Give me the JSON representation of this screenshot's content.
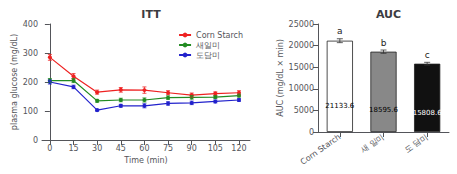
{
  "chart_data": [
    {
      "type": "line",
      "title": "ITT",
      "x": [
        0,
        15,
        30,
        45,
        60,
        75,
        90,
        105,
        120
      ],
      "xlim": [
        -5,
        127
      ],
      "xticks": [
        0,
        15,
        30,
        45,
        60,
        75,
        90,
        105,
        120
      ],
      "ylim": [
        0,
        400
      ],
      "yticks": [
        0,
        100,
        200,
        300,
        400
      ],
      "xlabel": "Time (min)",
      "ylabel": "plasma glucose (mg/dL)",
      "grid": false,
      "legend": "upper right",
      "marker": "circle",
      "series": [
        {
          "name": "Corn Starch",
          "color": "#EE2222",
          "values": [
            285,
            220,
            165,
            173,
            172,
            163,
            155,
            160,
            163
          ],
          "errors": [
            10,
            9,
            7,
            8,
            11,
            7,
            7,
            6,
            7
          ]
        },
        {
          "name": "새일미",
          "color": "#228B22",
          "values": [
            205,
            205,
            135,
            138,
            138,
            146,
            147,
            148,
            153
          ],
          "errors": [
            7,
            7,
            5,
            6,
            7,
            6,
            6,
            5,
            5
          ]
        },
        {
          "name": "도담미",
          "color": "#2222CC",
          "values": [
            200,
            183,
            103,
            118,
            118,
            126,
            128,
            133,
            138
          ],
          "errors": [
            7,
            6,
            4,
            5,
            7,
            6,
            6,
            5,
            5
          ]
        }
      ]
    },
    {
      "type": "bar",
      "title": "AUC",
      "categories": [
        "Corn Starch",
        "새 일미",
        "도 담미"
      ],
      "values": [
        21133.6,
        18595.6,
        15808.6
      ],
      "errors": [
        450,
        380,
        320
      ],
      "colors": [
        "#FFFFFF",
        "#888888",
        "#111111"
      ],
      "ylabel": "AUC (mg/dL × min)",
      "ylim": [
        0,
        25000
      ],
      "yticks": [
        0,
        5000,
        10000,
        15000,
        20000,
        25000
      ],
      "grid": false,
      "data_labels": true,
      "annotations": [
        "a",
        "b",
        "c"
      ]
    }
  ]
}
